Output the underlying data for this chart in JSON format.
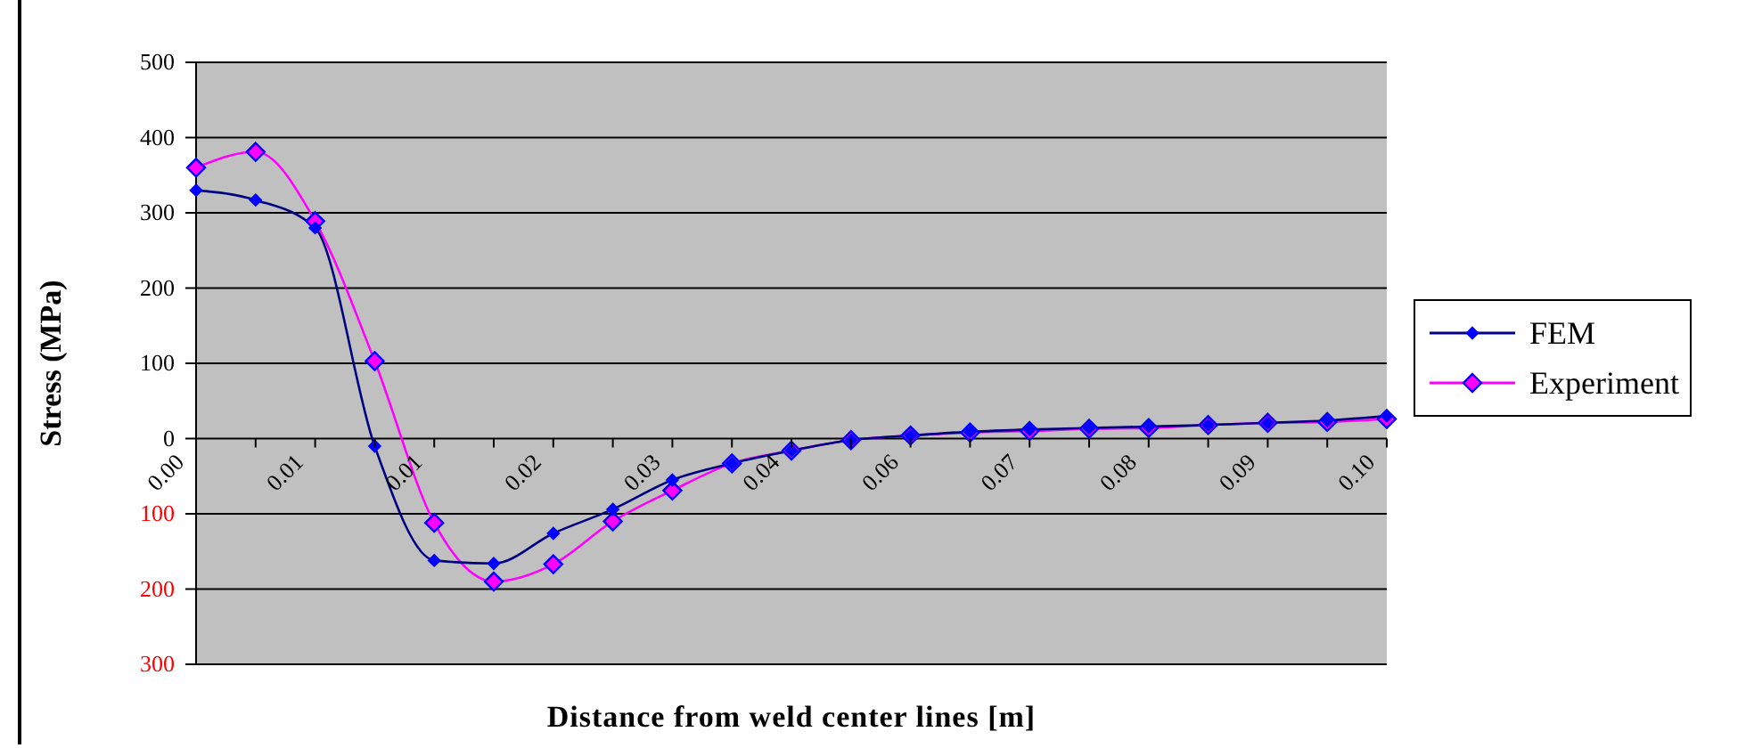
{
  "chart_data": {
    "type": "line",
    "xlabel": "Distance  from weld center lines  [m]",
    "ylabel": "Stress (MPa)",
    "categories": [
      "0.00",
      null,
      "0.01",
      null,
      "0.01",
      null,
      "0.02",
      null,
      "0.03",
      null,
      "0.04",
      null,
      "0.06",
      null,
      "0.07",
      null,
      "0.08",
      null,
      "0.09",
      null,
      "0.10"
    ],
    "series": [
      {
        "name": "FEM",
        "color": "#000080",
        "values": [
          330,
          317,
          280,
          -10,
          -162,
          -166,
          -126,
          -94,
          -55,
          -33,
          -16,
          -2,
          4,
          9,
          12,
          14,
          16,
          18,
          21,
          24,
          30
        ]
      },
      {
        "name": "Experiment",
        "color": "#ff00ff",
        "values": [
          360,
          381,
          289,
          103,
          -112,
          -190,
          -167,
          -110,
          -69,
          -33,
          -16,
          -2,
          4,
          8,
          10,
          13,
          14,
          18,
          21,
          22,
          26
        ]
      }
    ],
    "ylim": [
      -300,
      500
    ],
    "yticks": [
      {
        "value": -300,
        "label": "300"
      },
      {
        "value": -200,
        "label": "200"
      },
      {
        "value": -100,
        "label": "100"
      },
      0,
      100,
      200,
      300,
      400,
      500
    ],
    "grid": "y",
    "legend": "right",
    "marker": "diamond",
    "line_style": "solid"
  }
}
